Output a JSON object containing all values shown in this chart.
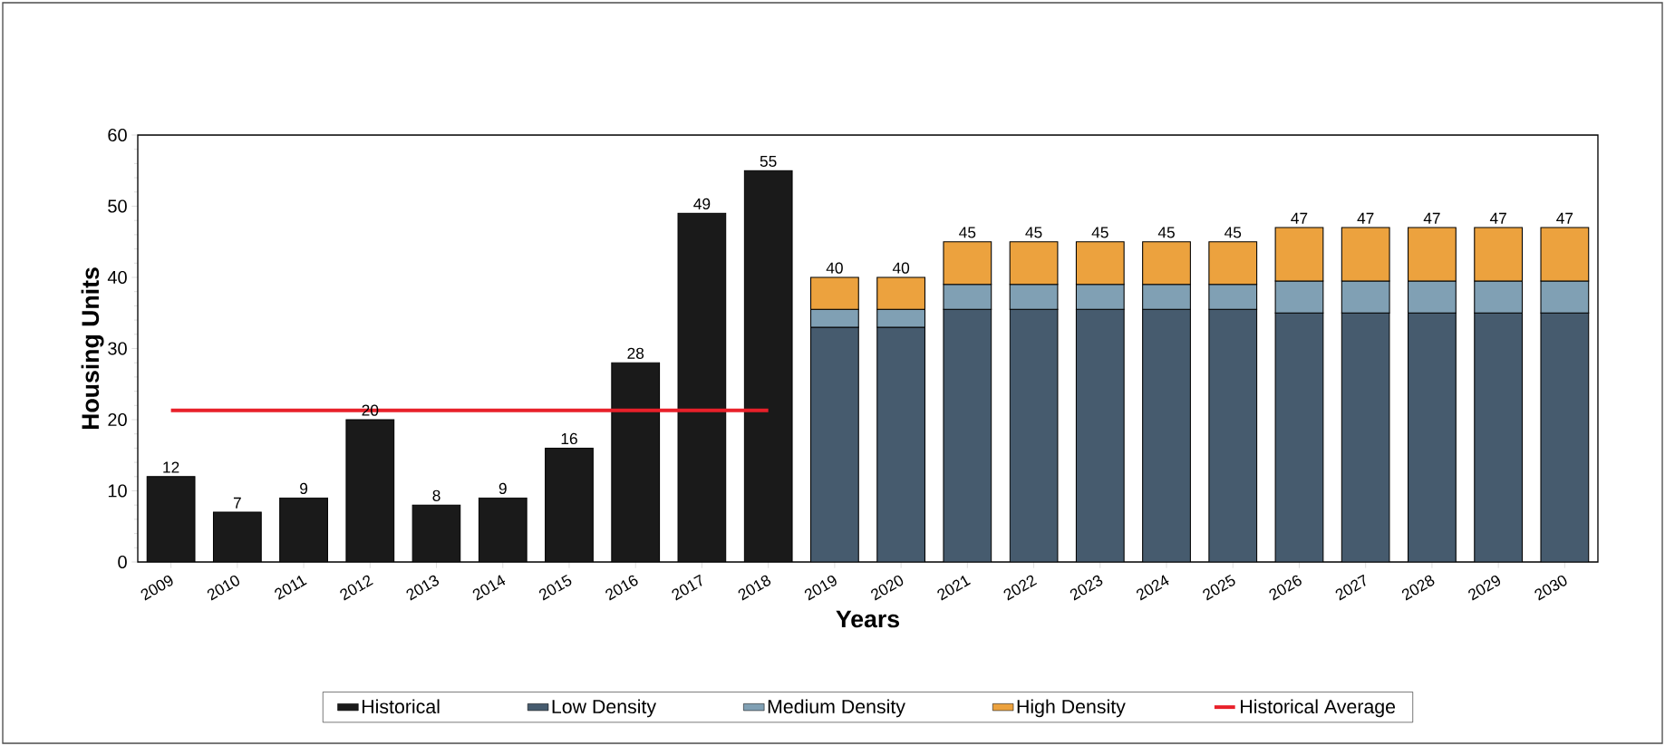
{
  "chart_data": {
    "type": "bar",
    "stacked": true,
    "xlabel": "Years",
    "ylabel": "Housing Units",
    "categories": [
      "2009",
      "2010",
      "2011",
      "2012",
      "2013",
      "2014",
      "2015",
      "2016",
      "2017",
      "2018",
      "2019",
      "2020",
      "2021",
      "2022",
      "2023",
      "2024",
      "2025",
      "2026",
      "2027",
      "2028",
      "2029",
      "2030"
    ],
    "series": [
      {
        "name": "Historical",
        "color": "#1a1a1a",
        "values": [
          12,
          7,
          9,
          20,
          8,
          9,
          16,
          28,
          49,
          55,
          null,
          null,
          null,
          null,
          null,
          null,
          null,
          null,
          null,
          null,
          null,
          null
        ]
      },
      {
        "name": "Low Density",
        "color": "#465b6e",
        "values": [
          null,
          null,
          null,
          null,
          null,
          null,
          null,
          null,
          null,
          null,
          33,
          33,
          35.5,
          35.5,
          35.5,
          35.5,
          35.5,
          35,
          35,
          35,
          35,
          35
        ]
      },
      {
        "name": "Medium Density",
        "color": "#80a0b4",
        "values": [
          null,
          null,
          null,
          null,
          null,
          null,
          null,
          null,
          null,
          null,
          2.5,
          2.5,
          3.5,
          3.5,
          3.5,
          3.5,
          3.5,
          4.5,
          4.5,
          4.5,
          4.5,
          4.5
        ]
      },
      {
        "name": "High Density",
        "color": "#eca23e",
        "values": [
          null,
          null,
          null,
          null,
          null,
          null,
          null,
          null,
          null,
          null,
          4.5,
          4.5,
          6,
          6,
          6,
          6,
          6,
          7.5,
          7.5,
          7.5,
          7.5,
          7.5
        ]
      },
      {
        "name": "Historical Average",
        "type": "line",
        "color": "#e8202a",
        "values": [
          21.3,
          21.3,
          21.3,
          21.3,
          21.3,
          21.3,
          21.3,
          21.3,
          21.3,
          21.3,
          null,
          null,
          null,
          null,
          null,
          null,
          null,
          null,
          null,
          null,
          null,
          null
        ]
      }
    ],
    "totals": [
      "12",
      "7",
      "9",
      "20",
      "8",
      "9",
      "16",
      "28",
      "49",
      "55",
      "40",
      "40",
      "45",
      "45",
      "45",
      "45",
      "45",
      "47",
      "47",
      "47",
      "47",
      "47"
    ],
    "ylim": [
      0,
      60
    ],
    "yticks": [
      0,
      10,
      20,
      30,
      40,
      50,
      60
    ],
    "legend": "bottom"
  }
}
